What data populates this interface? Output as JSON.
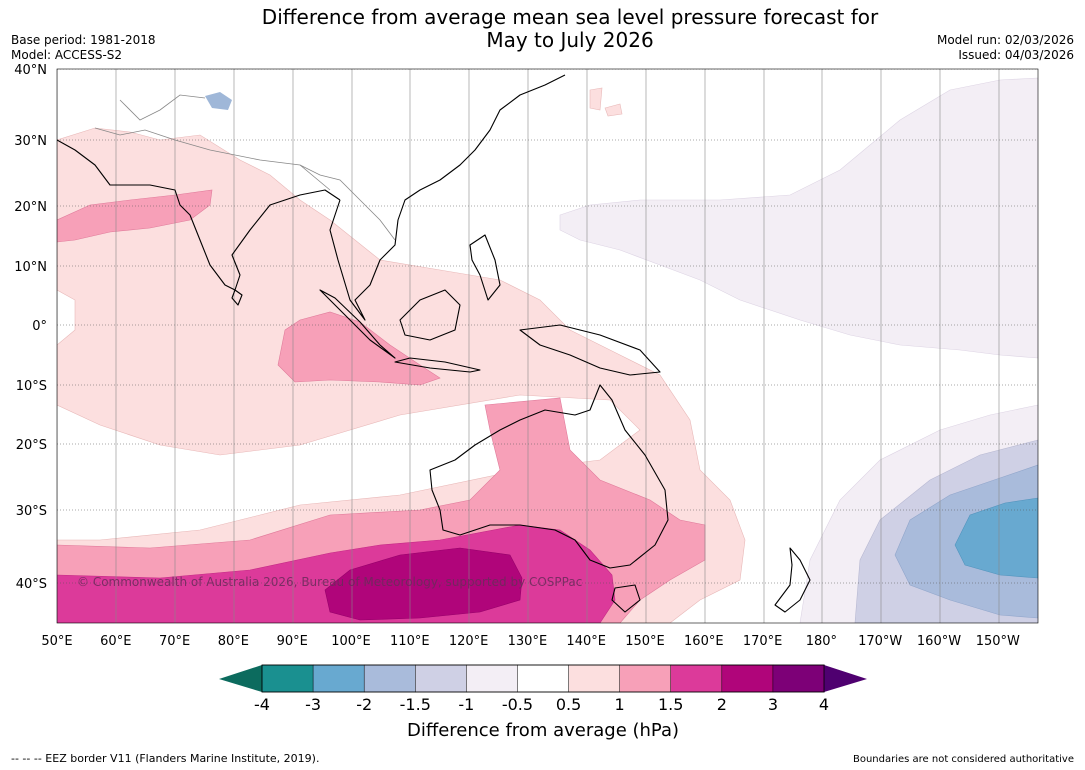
{
  "title_line1": "Difference from average mean sea level pressure forecast for",
  "title_line2": "May to July 2026",
  "base_period": "Base period: 1981-2018",
  "model": "Model: ACCESS-S2",
  "model_run": "Model run: 02/03/2026",
  "issued": "Issued: 04/03/2026",
  "copyright": "© Commonwealth of Australia 2026, Bureau of Meteorology, supported by COSPPac",
  "lat_labels": [
    "40°N",
    "30°N",
    "20°N",
    "10°N",
    "0°",
    "10°S",
    "20°S",
    "30°S",
    "40°S"
  ],
  "lon_labels": [
    "50°E",
    "60°E",
    "70°E",
    "80°E",
    "90°E",
    "100°E",
    "110°E",
    "120°E",
    "130°E",
    "140°E",
    "150°E",
    "160°E",
    "170°E",
    "180°",
    "170°W",
    "160°W",
    "150°W"
  ],
  "colorbar": {
    "title": "Difference from average (hPa)",
    "ticks": [
      "-4",
      "-3",
      "-2",
      "-1.5",
      "-1",
      "-0.5",
      "0.5",
      "1",
      "1.5",
      "2",
      "3",
      "4"
    ],
    "colors": [
      "#1a9090",
      "#68a9d0",
      "#a9bbdb",
      "#cfd0e5",
      "#f3eef5",
      "#ffffff",
      "#fcdfdf",
      "#f7a0b8",
      "#dc3a9a",
      "#b0057a",
      "#7d0077"
    ],
    "under_color": "#0c6b5e",
    "over_color": "#4f0070"
  },
  "footer_left": "--  --  -- EEZ border V11 (Flanders Marine Institute, 2019).",
  "footer_right": "Boundaries are not considered authoritative"
}
